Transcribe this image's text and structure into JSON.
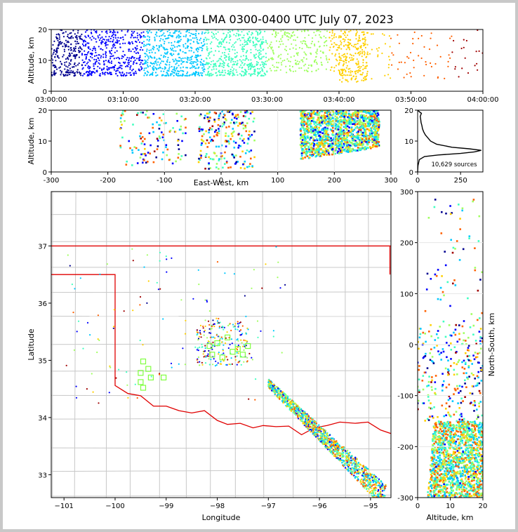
{
  "title": "Oklahoma LMA 0300-0400 UTC July 07, 2023",
  "colors": {
    "state_border": "#e00000",
    "county_lines": "#c8c8c8",
    "square_markers": "#80ff40",
    "colormap": [
      "#00008f",
      "#0000ff",
      "#00c8ff",
      "#40ffc0",
      "#a0ff60",
      "#ffd000",
      "#ff6000",
      "#a00000"
    ]
  },
  "chart_data": [
    {
      "id": "time_height",
      "type": "scatter",
      "xlabel": "",
      "ylabel": "Altitude, km",
      "xticks": [
        "03:00:00",
        "03:10:00",
        "03:20:00",
        "03:30:00",
        "03:40:00",
        "03:50:00",
        "04:00:00"
      ],
      "xlim_minutes": [
        0,
        60
      ],
      "ylim": [
        0,
        20
      ],
      "yticks": [
        0,
        10,
        20
      ],
      "point_clusters": [
        {
          "t_start": 0,
          "t_end": 30,
          "alt_min": 5,
          "alt_max": 20,
          "density": "very high"
        },
        {
          "t_start": 30,
          "t_end": 40,
          "alt_min": 6,
          "alt_max": 20,
          "density": "medium"
        },
        {
          "t_start": 40,
          "t_end": 44,
          "alt_min": 3,
          "alt_max": 20,
          "density": "medium"
        },
        {
          "t_start": 44,
          "t_end": 60,
          "alt_min": 4,
          "alt_max": 20,
          "density": "low"
        }
      ]
    },
    {
      "id": "ew_height",
      "type": "scatter",
      "xlabel": "East-West, km",
      "ylabel": "Altitude, km",
      "xlim": [
        -300,
        300
      ],
      "xticks": [
        -300,
        -200,
        -100,
        0,
        100,
        200,
        300
      ],
      "ylim": [
        0,
        20
      ],
      "yticks": [
        0,
        10,
        20
      ],
      "point_clusters": [
        {
          "x_min": 140,
          "x_max": 280,
          "alt_min": 4,
          "alt_max": 20,
          "density": "high"
        },
        {
          "x_min": -40,
          "x_max": 60,
          "alt_min": 1,
          "alt_max": 20,
          "density": "medium"
        },
        {
          "x_min": -180,
          "x_max": -60,
          "alt_min": 2,
          "alt_max": 20,
          "density": "low"
        }
      ]
    },
    {
      "id": "height_histogram",
      "type": "line",
      "xlabel": "",
      "ylabel": "",
      "xlim": [
        0,
        380
      ],
      "xticks": [
        0,
        250
      ],
      "ylim": [
        0,
        20
      ],
      "yticks": [
        0,
        10,
        20
      ],
      "annotation": "10,629 sources",
      "profile": [
        {
          "alt": 0,
          "count": 0
        },
        {
          "alt": 2,
          "count": 2
        },
        {
          "alt": 4,
          "count": 10
        },
        {
          "alt": 5,
          "count": 40
        },
        {
          "alt": 5.5,
          "count": 120
        },
        {
          "alt": 6,
          "count": 250
        },
        {
          "alt": 6.5,
          "count": 330
        },
        {
          "alt": 7,
          "count": 370
        },
        {
          "alt": 7.5,
          "count": 300
        },
        {
          "alt": 8,
          "count": 200
        },
        {
          "alt": 9,
          "count": 110
        },
        {
          "alt": 10,
          "count": 75
        },
        {
          "alt": 11,
          "count": 60
        },
        {
          "alt": 12,
          "count": 45
        },
        {
          "alt": 13,
          "count": 35
        },
        {
          "alt": 14,
          "count": 28
        },
        {
          "alt": 15,
          "count": 25
        },
        {
          "alt": 16,
          "count": 20
        },
        {
          "alt": 17,
          "count": 18
        },
        {
          "alt": 18,
          "count": 15
        },
        {
          "alt": 19,
          "count": 22
        },
        {
          "alt": 19.5,
          "count": 10
        },
        {
          "alt": 20,
          "count": 0
        }
      ]
    },
    {
      "id": "plan_view",
      "type": "scatter",
      "xlabel": "Longitude",
      "ylabel": "Latitude",
      "xlim": [
        -101.25,
        -94.6
      ],
      "xticks": [
        -101,
        -100,
        -99,
        -98,
        -97,
        -96,
        -95
      ],
      "ylim": [
        32.6,
        37.95
      ],
      "yticks": [
        33,
        34,
        35,
        36,
        37
      ],
      "stations": [
        {
          "lon": -98.15,
          "lat": 35.25
        },
        {
          "lon": -98.0,
          "lat": 35.3
        },
        {
          "lon": -97.8,
          "lat": 35.4
        },
        {
          "lon": -97.6,
          "lat": 35.2
        },
        {
          "lon": -97.4,
          "lat": 35.25
        },
        {
          "lon": -97.9,
          "lat": 35.05
        },
        {
          "lon": -98.1,
          "lat": 35.1
        },
        {
          "lon": -97.7,
          "lat": 35.15
        },
        {
          "lon": -97.5,
          "lat": 35.1
        },
        {
          "lon": -99.45,
          "lat": 34.98
        },
        {
          "lon": -99.35,
          "lat": 34.85
        },
        {
          "lon": -99.5,
          "lat": 34.78
        },
        {
          "lon": -99.3,
          "lat": 34.7
        },
        {
          "lon": -99.5,
          "lat": 34.62
        },
        {
          "lon": -99.45,
          "lat": 34.52
        },
        {
          "lon": -99.05,
          "lat": 34.7
        }
      ]
    },
    {
      "id": "ns_height",
      "type": "scatter",
      "xlabel": "Altitude, km",
      "ylabel": "North-South, km",
      "xlim": [
        0,
        20
      ],
      "xticks": [
        0,
        10,
        20
      ],
      "ylim": [
        -300,
        300
      ],
      "yticks": [
        -300,
        -200,
        -100,
        0,
        100,
        200,
        300
      ],
      "point_clusters": [
        {
          "ns_min": -300,
          "ns_max": -150,
          "alt_min": 3,
          "alt_max": 20,
          "density": "high"
        },
        {
          "ns_min": -150,
          "ns_max": 40,
          "alt_min": 0,
          "alt_max": 20,
          "density": "medium"
        },
        {
          "ns_min": 40,
          "ns_max": 290,
          "alt_min": 2,
          "alt_max": 20,
          "density": "low"
        }
      ]
    }
  ]
}
